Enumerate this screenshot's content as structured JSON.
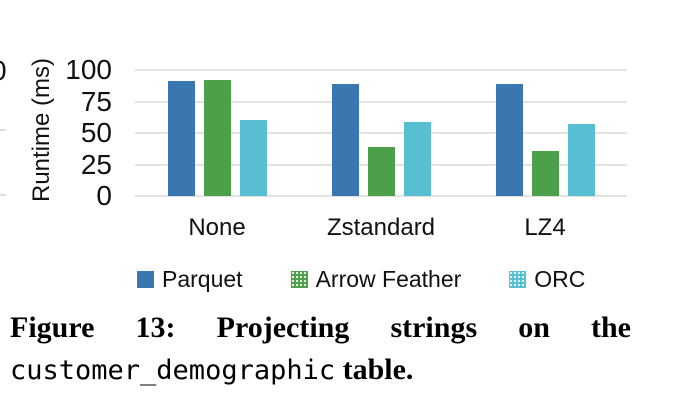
{
  "chart_data": {
    "type": "bar",
    "title": "",
    "xlabel": "",
    "ylabel": "Runtime (ms)",
    "ylim": [
      0,
      100
    ],
    "yticks": [
      0,
      25,
      50,
      75,
      100
    ],
    "grid": true,
    "legend_position": "bottom",
    "categories": [
      "None",
      "Zstandard",
      "LZ4"
    ],
    "series": [
      {
        "name": "Parquet",
        "color": "#3a76b0",
        "pattern": false,
        "values": [
          91,
          89,
          89
        ]
      },
      {
        "name": "Arrow Feather",
        "color": "#4ca04a",
        "pattern": true,
        "values": [
          92,
          39,
          36
        ]
      },
      {
        "name": "ORC",
        "color": "#57bfd1",
        "pattern": true,
        "values": [
          60,
          59,
          57
        ]
      }
    ]
  },
  "caption": {
    "line1": "Figure 13: Projecting strings on the",
    "code": "customer_demographic",
    "tail": " table."
  },
  "artifacts": {
    "adjacent_tick_label": "0"
  },
  "colors": {
    "gridline": "#e2e2e2",
    "text": "#111111",
    "background": "#ffffff"
  }
}
